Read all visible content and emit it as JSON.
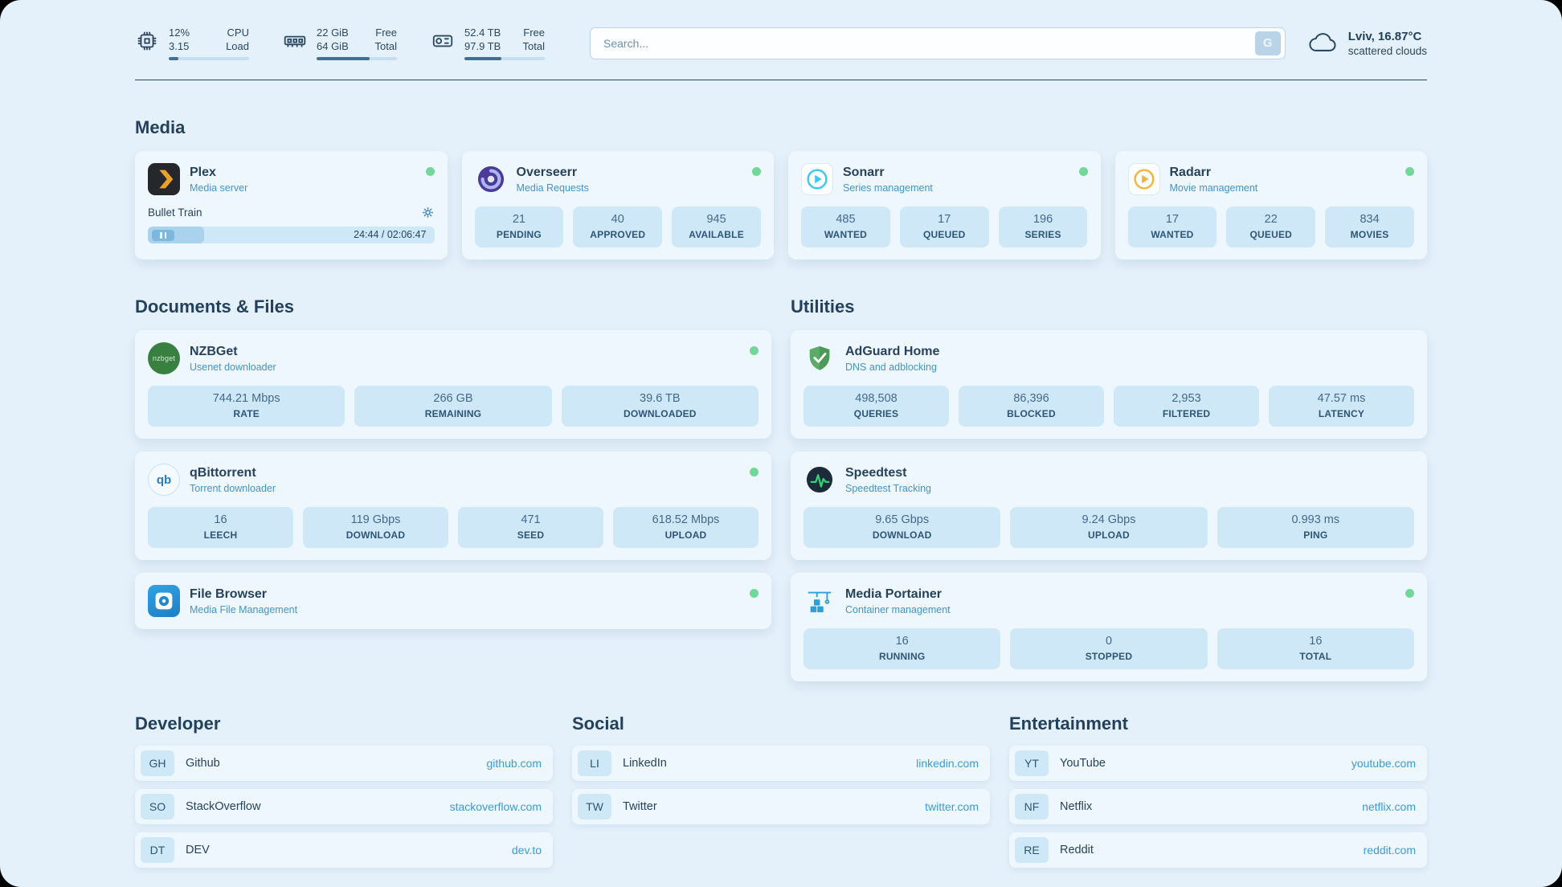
{
  "header": {
    "cpu": {
      "value1": "12%",
      "label1": "CPU",
      "value2": "3.15",
      "label2": "Load",
      "bar_pct": 12
    },
    "ram": {
      "value1": "22 GiB",
      "label1": "Free",
      "value2": "64 GiB",
      "label2": "Total",
      "bar_pct": 66
    },
    "disk": {
      "value1": "52.4 TB",
      "label1": "Free",
      "value2": "97.9 TB",
      "label2": "Total",
      "bar_pct": 46
    },
    "search": {
      "placeholder": "Search...",
      "button_label": "G"
    },
    "weather": {
      "location": "Lviv, 16.87°C",
      "condition": "scattered clouds"
    }
  },
  "media": {
    "heading": "Media",
    "plex": {
      "title": "Plex",
      "subtitle": "Media server",
      "status": "online",
      "now_playing": "Bullet Train",
      "time": "24:44 / 02:06:47",
      "progress_pct": 19.5
    },
    "overseerr": {
      "title": "Overseerr",
      "subtitle": "Media Requests",
      "status": "online",
      "stats": [
        {
          "value": "21",
          "label": "PENDING"
        },
        {
          "value": "40",
          "label": "APPROVED"
        },
        {
          "value": "945",
          "label": "AVAILABLE"
        }
      ]
    },
    "sonarr": {
      "title": "Sonarr",
      "subtitle": "Series management",
      "status": "online",
      "stats": [
        {
          "value": "485",
          "label": "WANTED"
        },
        {
          "value": "17",
          "label": "QUEUED"
        },
        {
          "value": "196",
          "label": "SERIES"
        }
      ]
    },
    "radarr": {
      "title": "Radarr",
      "subtitle": "Movie management",
      "status": "online",
      "stats": [
        {
          "value": "17",
          "label": "WANTED"
        },
        {
          "value": "22",
          "label": "QUEUED"
        },
        {
          "value": "834",
          "label": "MOVIES"
        }
      ]
    }
  },
  "documents": {
    "heading": "Documents & Files",
    "nzbget": {
      "title": "NZBGet",
      "subtitle": "Usenet downloader",
      "status": "online",
      "icon_text": "nzbget",
      "stats": [
        {
          "value": "744.21 Mbps",
          "label": "RATE"
        },
        {
          "value": "266 GB",
          "label": "REMAINING"
        },
        {
          "value": "39.6 TB",
          "label": "DOWNLOADED"
        }
      ]
    },
    "qbittorrent": {
      "title": "qBittorrent",
      "subtitle": "Torrent downloader",
      "status": "online",
      "icon_text": "qb",
      "stats": [
        {
          "value": "16",
          "label": "LEECH"
        },
        {
          "value": "119 Gbps",
          "label": "DOWNLOAD"
        },
        {
          "value": "471",
          "label": "SEED"
        },
        {
          "value": "618.52 Mbps",
          "label": "UPLOAD"
        }
      ]
    },
    "filebrowser": {
      "title": "File Browser",
      "subtitle": "Media File Management",
      "status": "online"
    }
  },
  "utilities": {
    "heading": "Utilities",
    "adguard": {
      "title": "AdGuard Home",
      "subtitle": "DNS and adblocking",
      "stats": [
        {
          "value": "498,508",
          "label": "QUERIES"
        },
        {
          "value": "86,396",
          "label": "BLOCKED"
        },
        {
          "value": "2,953",
          "label": "FILTERED"
        },
        {
          "value": "47.57 ms",
          "label": "LATENCY"
        }
      ]
    },
    "speedtest": {
      "title": "Speedtest",
      "subtitle": "Speedtest Tracking",
      "stats": [
        {
          "value": "9.65 Gbps",
          "label": "DOWNLOAD"
        },
        {
          "value": "9.24 Gbps",
          "label": "UPLOAD"
        },
        {
          "value": "0.993 ms",
          "label": "PING"
        }
      ]
    },
    "portainer": {
      "title": "Media Portainer",
      "subtitle": "Container management",
      "status": "online",
      "stats": [
        {
          "value": "16",
          "label": "RUNNING"
        },
        {
          "value": "0",
          "label": "STOPPED"
        },
        {
          "value": "16",
          "label": "TOTAL"
        }
      ]
    }
  },
  "bookmarks": {
    "developer": {
      "heading": "Developer",
      "items": [
        {
          "abbr": "GH",
          "name": "Github",
          "url": "github.com"
        },
        {
          "abbr": "SO",
          "name": "StackOverflow",
          "url": "stackoverflow.com"
        },
        {
          "abbr": "DT",
          "name": "DEV",
          "url": "dev.to"
        }
      ]
    },
    "social": {
      "heading": "Social",
      "items": [
        {
          "abbr": "LI",
          "name": "LinkedIn",
          "url": "linkedin.com"
        },
        {
          "abbr": "TW",
          "name": "Twitter",
          "url": "twitter.com"
        }
      ]
    },
    "entertainment": {
      "heading": "Entertainment",
      "items": [
        {
          "abbr": "YT",
          "name": "YouTube",
          "url": "youtube.com"
        },
        {
          "abbr": "NF",
          "name": "Netflix",
          "url": "netflix.com"
        },
        {
          "abbr": "RE",
          "name": "Reddit",
          "url": "reddit.com"
        }
      ]
    }
  },
  "colors": {
    "accent": "#3b9bd8",
    "status_ok": "#72d89a",
    "stat_box": "#cfe8f8",
    "page_bg": "#e5f1fa"
  }
}
